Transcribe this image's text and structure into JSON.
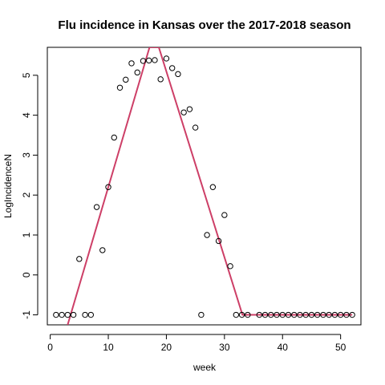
{
  "chart_data": {
    "type": "scatter",
    "title": "Flu incidence in Kansas over the 2017-2018 season",
    "xlabel": "week",
    "ylabel": "LogIncidenceN",
    "xlim": [
      -0.5,
      53.5
    ],
    "ylim": [
      -1.25,
      5.7
    ],
    "xticks": [
      0,
      10,
      20,
      30,
      40,
      50
    ],
    "yticks": [
      -1,
      0,
      1,
      2,
      3,
      4,
      5
    ],
    "colors": {
      "fit_line": "#cd3f67",
      "points": "#000000"
    },
    "points": [
      {
        "x": 1,
        "y": -1
      },
      {
        "x": 2,
        "y": -1
      },
      {
        "x": 3,
        "y": -1
      },
      {
        "x": 4,
        "y": -1
      },
      {
        "x": 5,
        "y": 0.4
      },
      {
        "x": 6,
        "y": -1
      },
      {
        "x": 7,
        "y": -1
      },
      {
        "x": 8,
        "y": 1.7
      },
      {
        "x": 9,
        "y": 0.62
      },
      {
        "x": 10,
        "y": 2.2
      },
      {
        "x": 11,
        "y": 3.44
      },
      {
        "x": 12,
        "y": 4.69
      },
      {
        "x": 13,
        "y": 4.89
      },
      {
        "x": 14,
        "y": 5.3
      },
      {
        "x": 15,
        "y": 5.07
      },
      {
        "x": 16,
        "y": 5.36
      },
      {
        "x": 17,
        "y": 5.37
      },
      {
        "x": 18,
        "y": 5.38
      },
      {
        "x": 19,
        "y": 4.9
      },
      {
        "x": 20,
        "y": 5.42
      },
      {
        "x": 21,
        "y": 5.18
      },
      {
        "x": 22,
        "y": 5.03
      },
      {
        "x": 23,
        "y": 4.07
      },
      {
        "x": 24,
        "y": 4.15
      },
      {
        "x": 25,
        "y": 3.69
      },
      {
        "x": 26,
        "y": -1
      },
      {
        "x": 27,
        "y": 1.0
      },
      {
        "x": 28,
        "y": 2.2
      },
      {
        "x": 29,
        "y": 0.85
      },
      {
        "x": 30,
        "y": 1.5
      },
      {
        "x": 31,
        "y": 0.22
      },
      {
        "x": 32,
        "y": -1
      },
      {
        "x": 33,
        "y": -1
      },
      {
        "x": 34,
        "y": -1
      },
      {
        "x": 36,
        "y": -1
      },
      {
        "x": 37,
        "y": -1
      },
      {
        "x": 38,
        "y": -1
      },
      {
        "x": 39,
        "y": -1
      },
      {
        "x": 40,
        "y": -1
      },
      {
        "x": 41,
        "y": -1
      },
      {
        "x": 42,
        "y": -1
      },
      {
        "x": 43,
        "y": -1
      },
      {
        "x": 44,
        "y": -1
      },
      {
        "x": 45,
        "y": -1
      },
      {
        "x": 46,
        "y": -1
      },
      {
        "x": 47,
        "y": -1
      },
      {
        "x": 48,
        "y": -1
      },
      {
        "x": 49,
        "y": -1
      },
      {
        "x": 50,
        "y": -1
      },
      {
        "x": 51,
        "y": -1
      },
      {
        "x": 52,
        "y": -1
      }
    ],
    "fit_line": [
      {
        "x": 3,
        "y": -1.25
      },
      {
        "x": 17.1,
        "y": 5.7
      },
      {
        "x": 18.7,
        "y": 5.7
      },
      {
        "x": 33.1,
        "y": -1
      },
      {
        "x": 52,
        "y": -1
      }
    ]
  }
}
